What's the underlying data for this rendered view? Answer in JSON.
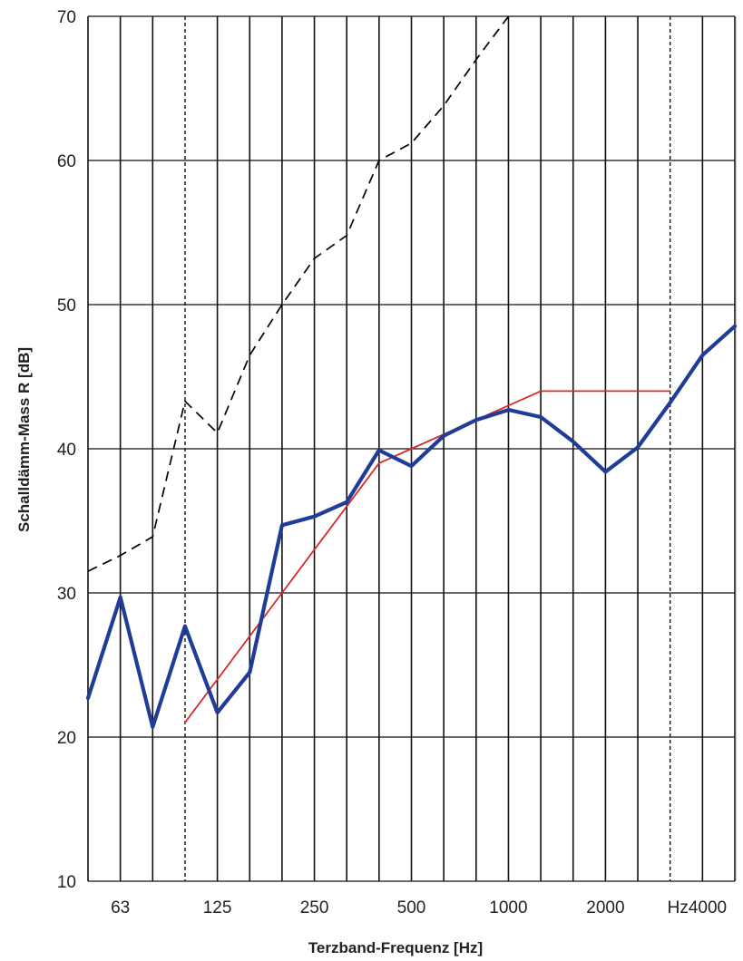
{
  "chart_data": {
    "type": "line",
    "xlabel": "Terzband-Frequenz [Hz]",
    "ylabel": "Schalldämm-Mass R [dB]",
    "ylim": [
      10,
      70
    ],
    "y_ticks": [
      "10",
      "20",
      "30",
      "40",
      "50",
      "60",
      "70"
    ],
    "x_tick_labels": [
      "63",
      "125",
      "250",
      "500",
      "1000",
      "2000",
      "Hz4000"
    ],
    "x": [
      50,
      63,
      80,
      100,
      125,
      160,
      200,
      250,
      315,
      400,
      500,
      630,
      800,
      1000,
      1250,
      1600,
      2000,
      2500,
      3150,
      4000,
      5000
    ],
    "grid": true,
    "series": [
      {
        "style": "thick-solid",
        "color": "#1f3c96",
        "values": [
          22.7,
          29.7,
          20.7,
          27.7,
          21.7,
          24.5,
          34.7,
          35.3,
          36.3,
          39.9,
          38.8,
          40.9,
          42.0,
          42.7,
          42.2,
          40.5,
          38.4,
          40.1,
          43.2,
          46.5,
          48.5
        ]
      },
      {
        "style": "dashed",
        "color": "#000000",
        "values": [
          31.5,
          32.6,
          33.9,
          43.3,
          41.1,
          46.5,
          50.0,
          53.2,
          54.8,
          60.0,
          61.2,
          63.8,
          67.0,
          70.0,
          null,
          null,
          null,
          null,
          null,
          null,
          null
        ]
      },
      {
        "style": "thin-solid",
        "color": "#d62b2b",
        "values": [
          null,
          null,
          null,
          21.0,
          24.0,
          27.0,
          30.0,
          33.0,
          36.0,
          39.0,
          40.0,
          41.0,
          42.0,
          43.0,
          44.0,
          44.0,
          44.0,
          44.0,
          44.0,
          null,
          null
        ]
      }
    ],
    "reference_lines_x": [
      100,
      3150
    ]
  }
}
